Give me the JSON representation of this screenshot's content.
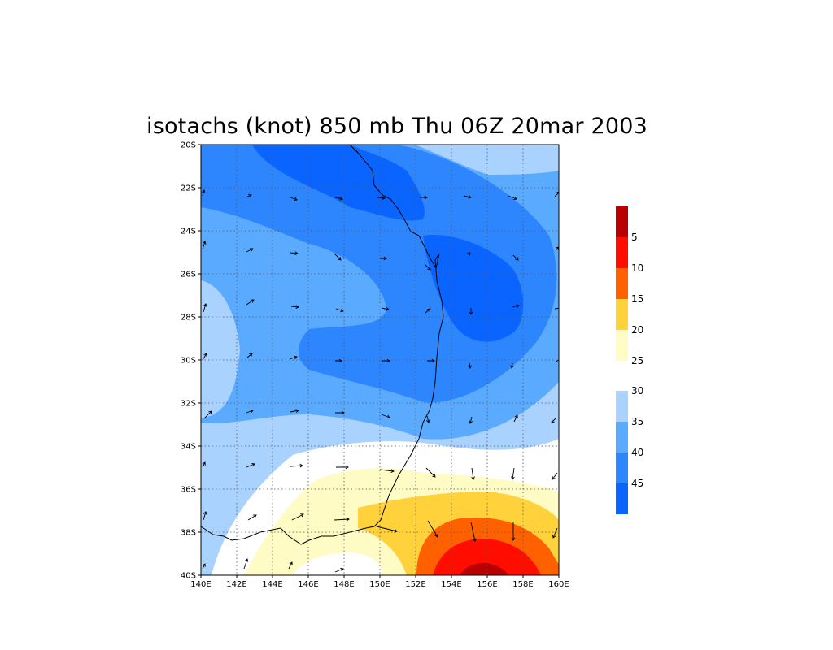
{
  "title": "isotachs (knot) 850 mb Thu 06Z 20mar 2003",
  "map": {
    "lon_range": [
      140,
      160
    ],
    "lat_range": [
      -40,
      -20
    ],
    "x_ticks": [
      "140E",
      "142E",
      "144E",
      "146E",
      "148E",
      "150E",
      "152E",
      "154E",
      "156E",
      "158E",
      "160E"
    ],
    "y_ticks": [
      "20S",
      "22S",
      "24S",
      "26S",
      "28S",
      "30S",
      "32S",
      "34S",
      "36S",
      "38S",
      "40S"
    ],
    "grid": true
  },
  "colors": {
    "lt5": "#0a64ff",
    "c5_10": "#2e86ff",
    "c10_15": "#5aaaff",
    "c15_20": "#aad2ff",
    "c20_25": "#ffffff",
    "c25_30": "#fffbc4",
    "c30_35": "#ffd23c",
    "c35_40": "#ff6000",
    "c40_45": "#ff0e00",
    "gt45": "#b80000"
  },
  "colorbar": {
    "labels": [
      "5",
      "10",
      "15",
      "20",
      "25",
      "30",
      "35",
      "40",
      "45"
    ]
  }
}
